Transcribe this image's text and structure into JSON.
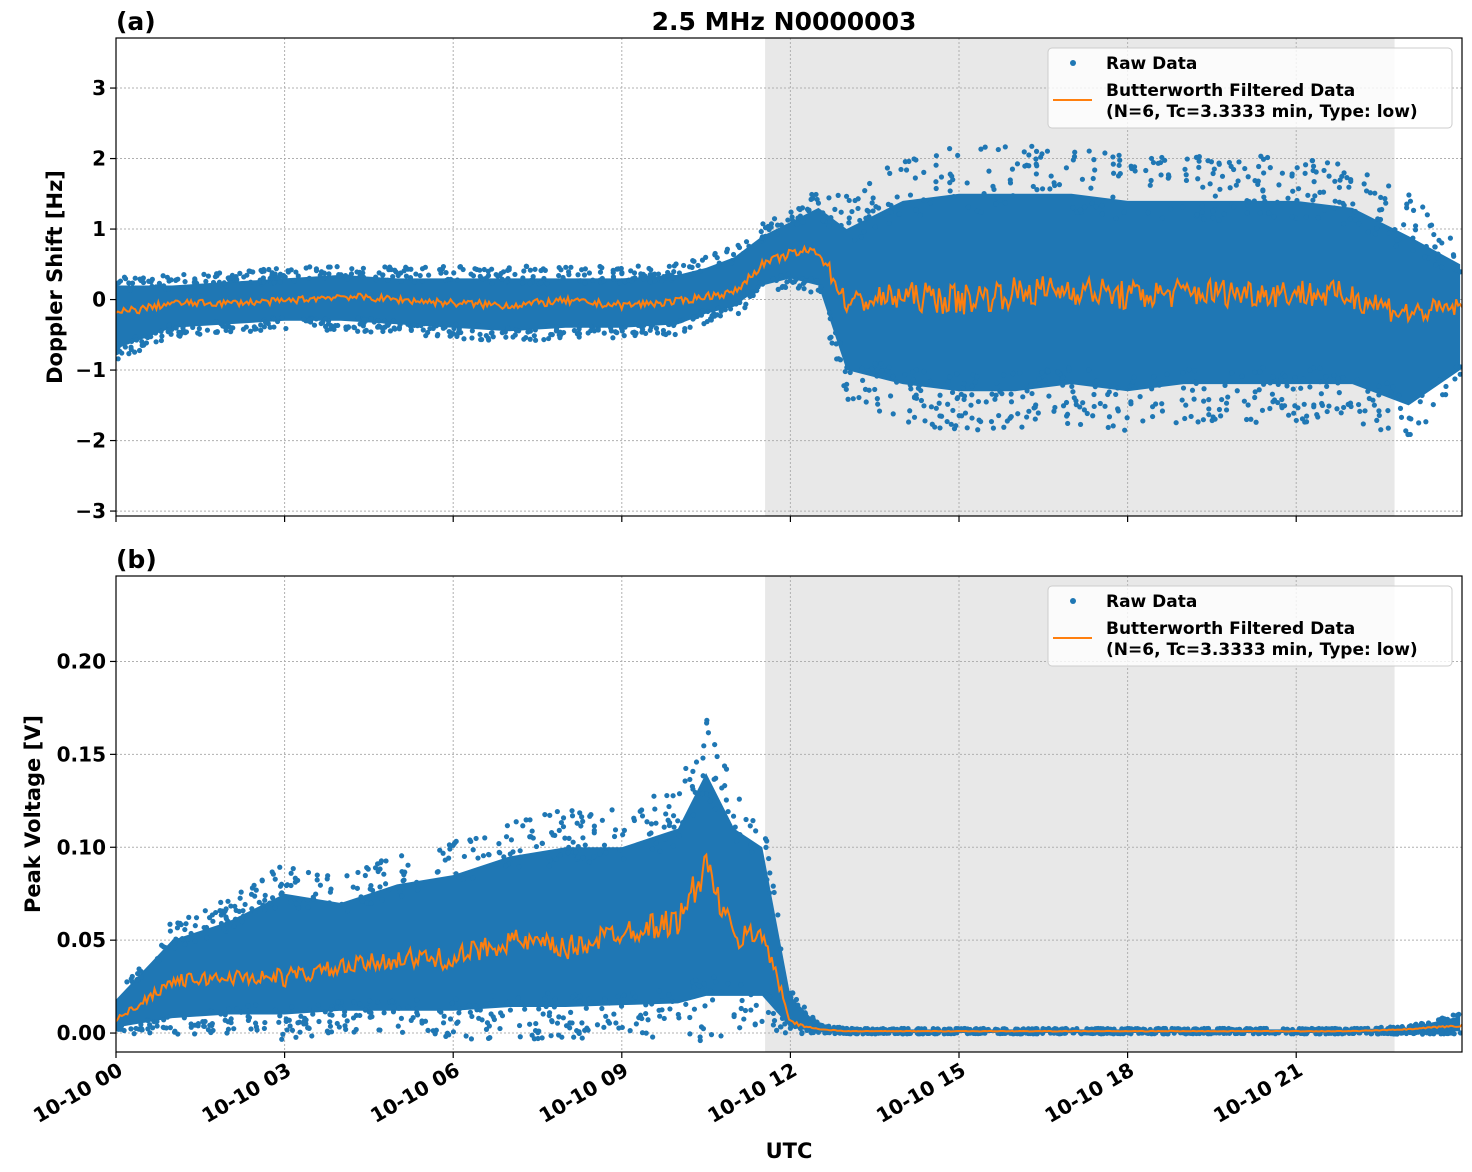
{
  "title": "2.5 MHz N0000003",
  "chart_data": [
    {
      "panel_label": "(a)",
      "type": "scatter",
      "ylabel": "Doppler Shift [Hz]",
      "xlabel": "",
      "xlim": [
        "10-10 00:00",
        "10-10 23:57"
      ],
      "ylim": [
        -3.07,
        3.71
      ],
      "yticks": [
        "−3",
        "−2",
        "−1",
        "0",
        "1",
        "2",
        "3"
      ],
      "ytick_values": [
        -3,
        -2,
        -1,
        0,
        1,
        2,
        3
      ],
      "grid": true,
      "legend": "upper right",
      "shaded_span": [
        "10-10 11:33",
        "10-10 22:45"
      ],
      "series": [
        {
          "name": "Raw Data",
          "kind": "scatter",
          "color": "#1f77b4",
          "envelope_upper": [
            0.2,
            0.2,
            0.25,
            0.3,
            0.35,
            0.3,
            0.3,
            0.3,
            0.3,
            0.3,
            0.35,
            0.45,
            0.6,
            0.9,
            1.1,
            1.3,
            1.0,
            1.4,
            1.5,
            1.5,
            1.5,
            1.4,
            1.4,
            1.4,
            1.4,
            1.3,
            0.9,
            0.5
          ],
          "envelope_lower": [
            -0.7,
            -0.4,
            -0.35,
            -0.3,
            -0.3,
            -0.35,
            -0.4,
            -0.45,
            -0.4,
            -0.4,
            -0.35,
            -0.2,
            -0.1,
            0.2,
            0.3,
            0.2,
            -1.0,
            -1.2,
            -1.3,
            -1.3,
            -1.2,
            -1.3,
            -1.2,
            -1.2,
            -1.2,
            -1.2,
            -1.5,
            -1.0
          ]
        },
        {
          "name": "Butterworth Filtered Data",
          "name_line2": "(N=6, Tc=3.3333 min, Type: low)",
          "kind": "line",
          "color": "#ff7f0e",
          "values": [
            -0.2,
            -0.05,
            -0.05,
            -0.02,
            0.05,
            0.0,
            -0.05,
            -0.08,
            -0.02,
            -0.08,
            -0.03,
            0.05,
            0.1,
            0.5,
            0.65,
            0.7,
            -0.05,
            0.05,
            0.0,
            0.1,
            0.15,
            0.05,
            0.1,
            0.1,
            0.1,
            0.05,
            -0.2,
            -0.1
          ]
        }
      ]
    },
    {
      "panel_label": "(b)",
      "type": "scatter",
      "ylabel": "Peak Voltage [V]",
      "xlabel": "UTC",
      "xlim": [
        "10-10 00:00",
        "10-10 23:57"
      ],
      "ylim": [
        -0.0102,
        0.246
      ],
      "yticks": [
        "0.00",
        "0.05",
        "0.10",
        "0.15",
        "0.20"
      ],
      "ytick_values": [
        0,
        0.05,
        0.1,
        0.15,
        0.2
      ],
      "grid": true,
      "legend": "upper right",
      "shaded_span": [
        "10-10 11:33",
        "10-10 22:45"
      ],
      "series": [
        {
          "name": "Raw Data",
          "kind": "scatter",
          "color": "#1f77b4",
          "envelope_upper": [
            0.018,
            0.05,
            0.06,
            0.075,
            0.07,
            0.08,
            0.085,
            0.095,
            0.1,
            0.1,
            0.11,
            0.14,
            0.11,
            0.1,
            0.02,
            0.004,
            0.002,
            0.002,
            0.002,
            0.002,
            0.002,
            0.002,
            0.002,
            0.002,
            0.002,
            0.002,
            0.003,
            0.009
          ],
          "envelope_lower": [
            0.003,
            0.008,
            0.01,
            0.01,
            0.012,
            0.012,
            0.012,
            0.014,
            0.014,
            0.015,
            0.016,
            0.02,
            0.02,
            0.02,
            0.003,
            0.0005,
            0,
            0,
            0,
            0,
            0,
            0,
            0,
            0,
            0,
            0,
            0,
            0.001
          ]
        },
        {
          "name": "Butterworth Filtered Data",
          "name_line2": "(N=6, Tc=3.3333 min, Type: low)",
          "kind": "line",
          "color": "#ff7f0e",
          "values": [
            0.007,
            0.028,
            0.03,
            0.03,
            0.035,
            0.04,
            0.04,
            0.05,
            0.045,
            0.055,
            0.06,
            0.09,
            0.05,
            0.055,
            0.006,
            0.002,
            0.001,
            0.001,
            0.001,
            0.001,
            0.001,
            0.001,
            0.001,
            0.001,
            0.001,
            0.001,
            0.002,
            0.004
          ]
        }
      ]
    }
  ],
  "x": [
    "10-10 00:00",
    "10-10 01:00",
    "10-10 02:00",
    "10-10 03:00",
    "10-10 04:00",
    "10-10 05:00",
    "10-10 06:00",
    "10-10 07:00",
    "10-10 08:00",
    "10-10 09:00",
    "10-10 10:00",
    "10-10 10:30",
    "10-10 11:00",
    "10-10 11:30",
    "10-10 12:00",
    "10-10 12:30",
    "10-10 13:00",
    "10-10 14:00",
    "10-10 15:00",
    "10-10 16:00",
    "10-10 17:00",
    "10-10 18:00",
    "10-10 19:00",
    "10-10 20:00",
    "10-10 21:00",
    "10-10 22:00",
    "10-10 23:00",
    "10-10 23:55"
  ],
  "xticks": [
    "10-10 00",
    "10-10 03",
    "10-10 06",
    "10-10 09",
    "10-10 12",
    "10-10 15",
    "10-10 18",
    "10-10 21"
  ]
}
